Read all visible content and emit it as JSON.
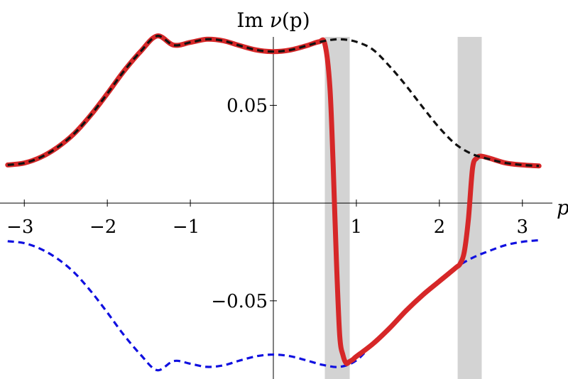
{
  "chart_data": {
    "type": "line",
    "title_prefix": "Im ",
    "title_italic": "ν",
    "title_suffix": "(p)",
    "xlabel": "p",
    "ylabel": "",
    "xlim": [
      -3.25,
      3.25
    ],
    "ylim": [
      -0.09,
      0.093
    ],
    "xticks": [
      -3,
      -2,
      -1,
      1,
      2,
      3
    ],
    "xtick_labels": [
      "−3",
      "−2",
      "−1",
      "1",
      "2",
      "3"
    ],
    "yticks": [
      0.05,
      -0.05
    ],
    "ytick_labels": [
      "0.05",
      "−0.05"
    ],
    "shaded_bands": [
      {
        "from": 0.62,
        "to": 0.92
      },
      {
        "from": 2.22,
        "to": 2.51
      }
    ],
    "colors": {
      "red": "#d62728",
      "black": "#111111",
      "blue": "#1010e0",
      "band": "#d3d3d3"
    },
    "series": [
      {
        "style": "solid-red",
        "x": [
          -3.2,
          -3.0,
          -2.8,
          -2.6,
          -2.4,
          -2.2,
          -2.0,
          -1.8,
          -1.6,
          -1.4,
          -1.2,
          -1.0,
          -0.8,
          -0.6,
          -0.4,
          -0.2,
          0.0,
          0.2,
          0.4,
          0.55,
          0.62,
          0.68,
          0.72,
          0.76,
          0.8,
          0.84,
          0.88,
          0.92,
          0.96,
          1.0,
          1.2,
          1.4,
          1.6,
          1.8,
          2.0,
          2.2,
          2.25,
          2.3,
          2.35,
          2.4,
          2.45,
          2.5,
          2.6,
          2.8,
          3.0,
          3.2
        ],
        "y": [
          0.0195,
          0.0205,
          0.0235,
          0.0285,
          0.0355,
          0.045,
          0.056,
          0.0675,
          0.0775,
          0.0855,
          0.0808,
          0.0822,
          0.0838,
          0.083,
          0.0805,
          0.0783,
          0.0775,
          0.0783,
          0.0805,
          0.0825,
          0.0815,
          0.06,
          0.02,
          -0.03,
          -0.068,
          -0.078,
          -0.082,
          -0.081,
          -0.08,
          -0.0785,
          -0.072,
          -0.064,
          -0.055,
          -0.047,
          -0.04,
          -0.033,
          -0.031,
          -0.025,
          -0.008,
          0.018,
          0.023,
          0.024,
          0.023,
          0.0205,
          0.0195,
          0.019
        ]
      },
      {
        "style": "dashed-black",
        "x": [
          -3.2,
          -3.0,
          -2.8,
          -2.6,
          -2.4,
          -2.2,
          -2.0,
          -1.8,
          -1.6,
          -1.4,
          -1.2,
          -1.0,
          -0.8,
          -0.6,
          -0.4,
          -0.2,
          0.0,
          0.2,
          0.4,
          0.6,
          0.8,
          1.0,
          1.2,
          1.4,
          1.6,
          1.8,
          2.0,
          2.2,
          2.4,
          2.6,
          2.8,
          3.0,
          3.2
        ],
        "y": [
          0.0195,
          0.0205,
          0.0235,
          0.0285,
          0.0355,
          0.045,
          0.056,
          0.0675,
          0.0775,
          0.0855,
          0.0808,
          0.0822,
          0.0838,
          0.083,
          0.0805,
          0.0783,
          0.0775,
          0.0783,
          0.0805,
          0.0828,
          0.0838,
          0.0825,
          0.0785,
          0.07,
          0.06,
          0.049,
          0.0385,
          0.03,
          0.025,
          0.0225,
          0.0205,
          0.0195,
          0.019
        ]
      },
      {
        "style": "dashed-blue",
        "x": [
          -3.2,
          -3.0,
          -2.8,
          -2.6,
          -2.4,
          -2.2,
          -2.0,
          -1.8,
          -1.6,
          -1.4,
          -1.2,
          -1.0,
          -0.8,
          -0.6,
          -0.4,
          -0.2,
          0.0,
          0.2,
          0.4,
          0.6,
          0.8,
          1.0,
          1.2,
          1.4,
          1.6,
          1.8,
          2.0,
          2.2,
          2.4,
          2.6,
          2.8,
          3.0,
          3.2
        ],
        "y": [
          -0.0195,
          -0.0205,
          -0.0235,
          -0.0285,
          -0.0355,
          -0.045,
          -0.056,
          -0.0675,
          -0.0775,
          -0.0855,
          -0.0808,
          -0.0822,
          -0.0838,
          -0.083,
          -0.0805,
          -0.0783,
          -0.0775,
          -0.0783,
          -0.0805,
          -0.0828,
          -0.0838,
          -0.0805,
          -0.072,
          -0.064,
          -0.055,
          -0.047,
          -0.04,
          -0.033,
          -0.028,
          -0.0245,
          -0.0215,
          -0.0198,
          -0.019
        ]
      }
    ]
  }
}
